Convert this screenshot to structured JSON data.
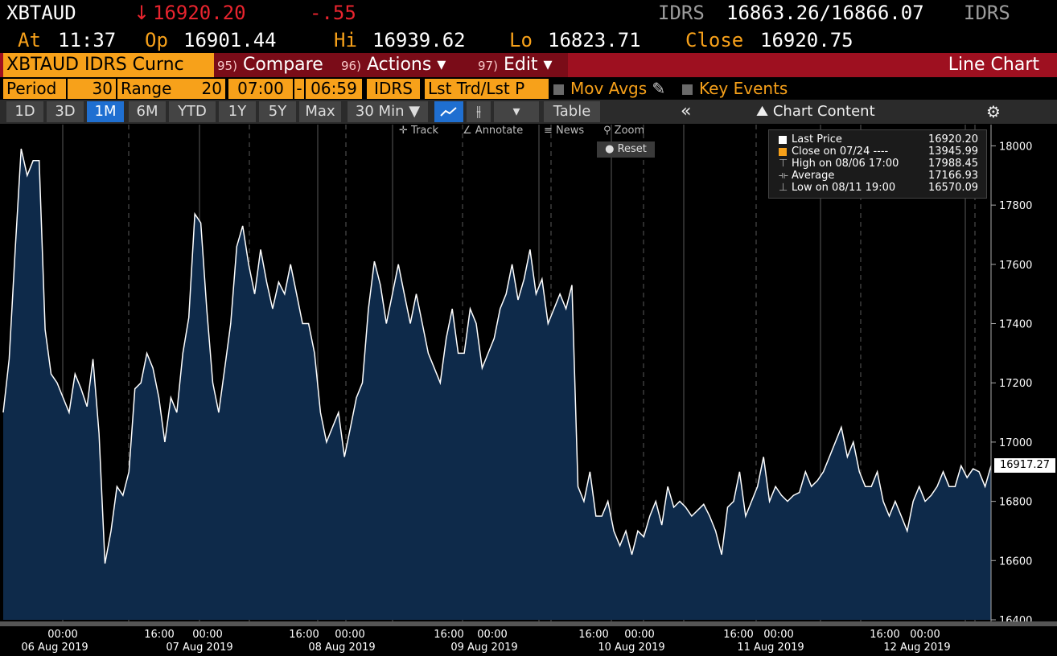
{
  "header": {
    "ticker": "XBTAUD",
    "arrow": "↓",
    "last_price": "16920.20",
    "change": "-.55",
    "source_left": "IDRS",
    "bid_ask": "16863.26/16866.07",
    "source_right": "IDRS",
    "at_label": "At",
    "at_time": "11:37",
    "op_label": "Op",
    "op_value": "16901.44",
    "hi_label": "Hi",
    "hi_value": "16939.62",
    "lo_label": "Lo",
    "lo_value": "16823.71",
    "close_label": "Close",
    "close_value": "16920.75"
  },
  "command_bar": {
    "security": "XBTAUD IDRS Curnc",
    "compare_num": "95)",
    "compare_label": "Compare",
    "actions_num": "96)",
    "actions_label": "Actions ▾",
    "edit_num": "97)",
    "edit_label": "Edit ▾",
    "function_title": "Line Chart"
  },
  "settings": {
    "period_label": "Period",
    "period_value": "30",
    "range_label": "Range",
    "range_value": "20",
    "time_from": "07:00",
    "dash": "-",
    "time_to": "06:59",
    "source": "IDRS",
    "fields": "Lst Trd/Lst P",
    "mov_avgs": "Mov Avgs",
    "key_events": "Key Events"
  },
  "toolbar": {
    "ranges": [
      "1D",
      "3D",
      "1M",
      "6M",
      "YTD",
      "1Y",
      "5Y",
      "Max"
    ],
    "active_range": "1M",
    "interval": "30 Min ▼",
    "table_label": "Table",
    "collapse": "«",
    "chart_content": "Chart Content",
    "settings_icon": "gear-icon"
  },
  "chart_tools": {
    "track": "Track",
    "annotate": "Annotate",
    "news": "News",
    "zoom": "Zoom",
    "reset": "Reset"
  },
  "legend": {
    "rows": [
      {
        "label": "Last Price",
        "value": "16920.20"
      },
      {
        "label": "Close on 07/24 ----",
        "value": "13945.99"
      },
      {
        "label": "High on 08/06 17:00",
        "value": "17988.45"
      },
      {
        "label": "Average",
        "value": "17166.93"
      },
      {
        "label": "Low on 08/11 19:00",
        "value": "16570.09"
      }
    ]
  },
  "last_value_tag": "16917.27",
  "colors": {
    "background": "#000000",
    "area_fill": "#0e2a4a",
    "line": "#ffffff",
    "accent_orange": "#f7a11a",
    "accent_red": "#e8242e",
    "bar_red": "#9e1020"
  },
  "chart_data": {
    "type": "area",
    "ylim": [
      16400,
      18050
    ],
    "y_ticks": [
      "18000",
      "17800",
      "17600",
      "17400",
      "17200",
      "17000",
      "16800",
      "16600",
      "16400"
    ],
    "x_tick_labels": [
      {
        "time": "00:00",
        "date": "06 Aug 2019"
      },
      {
        "time": "16:00",
        "date": ""
      },
      {
        "time": "00:00",
        "date": "07 Aug 2019"
      },
      {
        "time": "16:00",
        "date": ""
      },
      {
        "time": "00:00",
        "date": "08 Aug 2019"
      },
      {
        "time": "16:00",
        "date": ""
      },
      {
        "time": "00:00",
        "date": "09 Aug 2019"
      },
      {
        "time": "16:00",
        "date": ""
      },
      {
        "time": "00:00",
        "date": "10 Aug 2019"
      },
      {
        "time": "16:00",
        "date": ""
      },
      {
        "time": "00:00",
        "date": "11 Aug 2019"
      },
      {
        "time": "16:00",
        "date": ""
      },
      {
        "time": "00:00",
        "date": "12 Aug 2019"
      }
    ],
    "series": [
      {
        "name": "Last Price",
        "values": [
          17100,
          17280,
          17650,
          17990,
          17900,
          17950,
          17950,
          17380,
          17230,
          17200,
          17150,
          17100,
          17230,
          17180,
          17120,
          17280,
          17030,
          16590,
          16700,
          16850,
          16820,
          16900,
          17180,
          17200,
          17300,
          17250,
          17150,
          17000,
          17150,
          17100,
          17300,
          17420,
          17770,
          17740,
          17450,
          17200,
          17100,
          17250,
          17400,
          17660,
          17730,
          17600,
          17500,
          17650,
          17540,
          17450,
          17540,
          17500,
          17600,
          17500,
          17400,
          17400,
          17300,
          17100,
          17000,
          17050,
          17100,
          16950,
          17050,
          17150,
          17200,
          17450,
          17610,
          17530,
          17400,
          17500,
          17600,
          17500,
          17400,
          17500,
          17400,
          17300,
          17250,
          17200,
          17350,
          17450,
          17300,
          17300,
          17450,
          17400,
          17250,
          17300,
          17350,
          17450,
          17500,
          17600,
          17480,
          17550,
          17650,
          17500,
          17550,
          17400,
          17450,
          17500,
          17450,
          17530,
          16850,
          16800,
          16900,
          16750,
          16750,
          16800,
          16700,
          16650,
          16700,
          16620,
          16700,
          16680,
          16750,
          16800,
          16720,
          16850,
          16780,
          16800,
          16780,
          16750,
          16770,
          16790,
          16750,
          16700,
          16620,
          16780,
          16800,
          16900,
          16750,
          16800,
          16850,
          16950,
          16800,
          16850,
          16820,
          16800,
          16820,
          16830,
          16900,
          16850,
          16870,
          16900,
          16950,
          17000,
          17050,
          16950,
          17000,
          16900,
          16850,
          16850,
          16900,
          16800,
          16750,
          16800,
          16750,
          16700,
          16800,
          16850,
          16800,
          16820,
          16850,
          16900,
          16850,
          16850,
          16920,
          16880,
          16910,
          16900,
          16850,
          16920
        ]
      }
    ],
    "grid": true,
    "legend_placement": "top-right"
  }
}
